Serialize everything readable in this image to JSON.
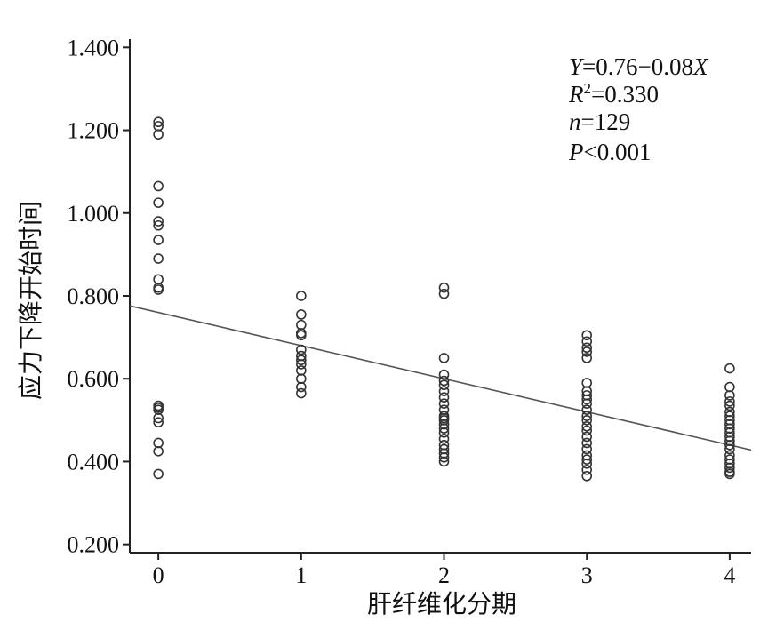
{
  "chart_data": {
    "type": "scatter",
    "xlabel": "肝纤维化分期",
    "ylabel": "应力下降开始时间",
    "x_ticks": [
      "0",
      "1",
      "2",
      "3",
      "4"
    ],
    "y_ticks": [
      "0.200",
      "0.400",
      "0.600",
      "0.800",
      "1.000",
      "1.200",
      "1.400"
    ],
    "xlim": [
      -0.2,
      4.15
    ],
    "ylim": [
      0.18,
      1.42
    ],
    "grid": false,
    "annotation": {
      "equation": {
        "y_var": "Y",
        "rest": "=0.76−0.08",
        "x_var": "X"
      },
      "r2": {
        "var": "R",
        "sup": "2",
        "rest": "=0.330"
      },
      "n": {
        "var": "n",
        "rest": "=129"
      },
      "p": {
        "var": "P",
        "rest": "<0.001"
      }
    },
    "regression": {
      "intercept": 0.76,
      "slope": -0.08
    },
    "points": [
      {
        "x": 0,
        "y": 1.22
      },
      {
        "x": 0,
        "y": 1.21
      },
      {
        "x": 0,
        "y": 1.19
      },
      {
        "x": 0,
        "y": 1.065
      },
      {
        "x": 0,
        "y": 1.025
      },
      {
        "x": 0,
        "y": 0.98
      },
      {
        "x": 0,
        "y": 0.97
      },
      {
        "x": 0,
        "y": 0.935
      },
      {
        "x": 0,
        "y": 0.89
      },
      {
        "x": 0,
        "y": 0.84
      },
      {
        "x": 0,
        "y": 0.82
      },
      {
        "x": 0,
        "y": 0.815
      },
      {
        "x": 0,
        "y": 0.535
      },
      {
        "x": 0,
        "y": 0.53
      },
      {
        "x": 0,
        "y": 0.525
      },
      {
        "x": 0,
        "y": 0.505
      },
      {
        "x": 0,
        "y": 0.495
      },
      {
        "x": 0,
        "y": 0.445
      },
      {
        "x": 0,
        "y": 0.425
      },
      {
        "x": 0,
        "y": 0.37
      },
      {
        "x": 1,
        "y": 0.8
      },
      {
        "x": 1,
        "y": 0.755
      },
      {
        "x": 1,
        "y": 0.73
      },
      {
        "x": 1,
        "y": 0.71
      },
      {
        "x": 1,
        "y": 0.705
      },
      {
        "x": 1,
        "y": 0.67
      },
      {
        "x": 1,
        "y": 0.655
      },
      {
        "x": 1,
        "y": 0.645
      },
      {
        "x": 1,
        "y": 0.635
      },
      {
        "x": 1,
        "y": 0.62
      },
      {
        "x": 1,
        "y": 0.6
      },
      {
        "x": 1,
        "y": 0.58
      },
      {
        "x": 1,
        "y": 0.565
      },
      {
        "x": 2,
        "y": 0.82
      },
      {
        "x": 2,
        "y": 0.805
      },
      {
        "x": 2,
        "y": 0.65
      },
      {
        "x": 2,
        "y": 0.61
      },
      {
        "x": 2,
        "y": 0.595
      },
      {
        "x": 2,
        "y": 0.585
      },
      {
        "x": 2,
        "y": 0.57
      },
      {
        "x": 2,
        "y": 0.555
      },
      {
        "x": 2,
        "y": 0.54
      },
      {
        "x": 2,
        "y": 0.525
      },
      {
        "x": 2,
        "y": 0.51
      },
      {
        "x": 2,
        "y": 0.505
      },
      {
        "x": 2,
        "y": 0.5
      },
      {
        "x": 2,
        "y": 0.49
      },
      {
        "x": 2,
        "y": 0.48
      },
      {
        "x": 2,
        "y": 0.47
      },
      {
        "x": 2,
        "y": 0.455
      },
      {
        "x": 2,
        "y": 0.44
      },
      {
        "x": 2,
        "y": 0.43
      },
      {
        "x": 2,
        "y": 0.42
      },
      {
        "x": 2,
        "y": 0.41
      },
      {
        "x": 2,
        "y": 0.4
      },
      {
        "x": 3,
        "y": 0.705
      },
      {
        "x": 3,
        "y": 0.69
      },
      {
        "x": 3,
        "y": 0.675
      },
      {
        "x": 3,
        "y": 0.665
      },
      {
        "x": 3,
        "y": 0.65
      },
      {
        "x": 3,
        "y": 0.59
      },
      {
        "x": 3,
        "y": 0.57
      },
      {
        "x": 3,
        "y": 0.56
      },
      {
        "x": 3,
        "y": 0.55
      },
      {
        "x": 3,
        "y": 0.54
      },
      {
        "x": 3,
        "y": 0.525
      },
      {
        "x": 3,
        "y": 0.51
      },
      {
        "x": 3,
        "y": 0.5
      },
      {
        "x": 3,
        "y": 0.485
      },
      {
        "x": 3,
        "y": 0.475
      },
      {
        "x": 3,
        "y": 0.46
      },
      {
        "x": 3,
        "y": 0.445
      },
      {
        "x": 3,
        "y": 0.43
      },
      {
        "x": 3,
        "y": 0.415
      },
      {
        "x": 3,
        "y": 0.405
      },
      {
        "x": 3,
        "y": 0.395
      },
      {
        "x": 3,
        "y": 0.38
      },
      {
        "x": 3,
        "y": 0.365
      },
      {
        "x": 4,
        "y": 0.625
      },
      {
        "x": 4,
        "y": 0.58
      },
      {
        "x": 4,
        "y": 0.56
      },
      {
        "x": 4,
        "y": 0.545
      },
      {
        "x": 4,
        "y": 0.535
      },
      {
        "x": 4,
        "y": 0.52
      },
      {
        "x": 4,
        "y": 0.51
      },
      {
        "x": 4,
        "y": 0.5
      },
      {
        "x": 4,
        "y": 0.49
      },
      {
        "x": 4,
        "y": 0.48
      },
      {
        "x": 4,
        "y": 0.47
      },
      {
        "x": 4,
        "y": 0.46
      },
      {
        "x": 4,
        "y": 0.45
      },
      {
        "x": 4,
        "y": 0.44
      },
      {
        "x": 4,
        "y": 0.43
      },
      {
        "x": 4,
        "y": 0.415
      },
      {
        "x": 4,
        "y": 0.405
      },
      {
        "x": 4,
        "y": 0.395
      },
      {
        "x": 4,
        "y": 0.385
      },
      {
        "x": 4,
        "y": 0.375
      },
      {
        "x": 4,
        "y": 0.37
      }
    ]
  }
}
